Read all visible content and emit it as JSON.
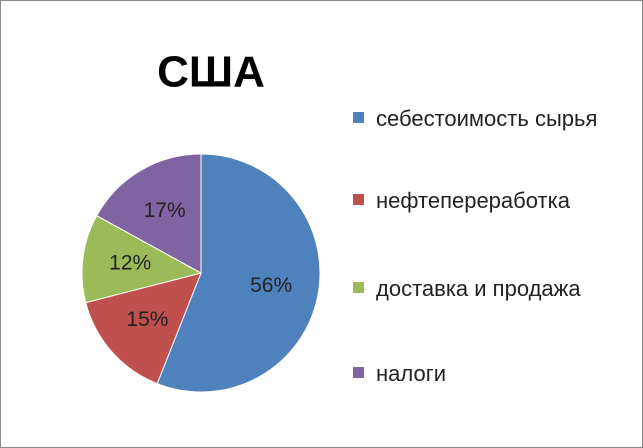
{
  "chart_data": {
    "type": "pie",
    "title": "США",
    "categories": [
      "себестоимость сырья",
      "нефтепереработка",
      "доставка и продажа",
      "налоги"
    ],
    "values": [
      56,
      15,
      12,
      17
    ],
    "value_labels": [
      "56%",
      "15%",
      "12%",
      "17%"
    ],
    "colors": [
      "#4f81bd",
      "#c0504d",
      "#9bbb59",
      "#8064a2"
    ]
  }
}
